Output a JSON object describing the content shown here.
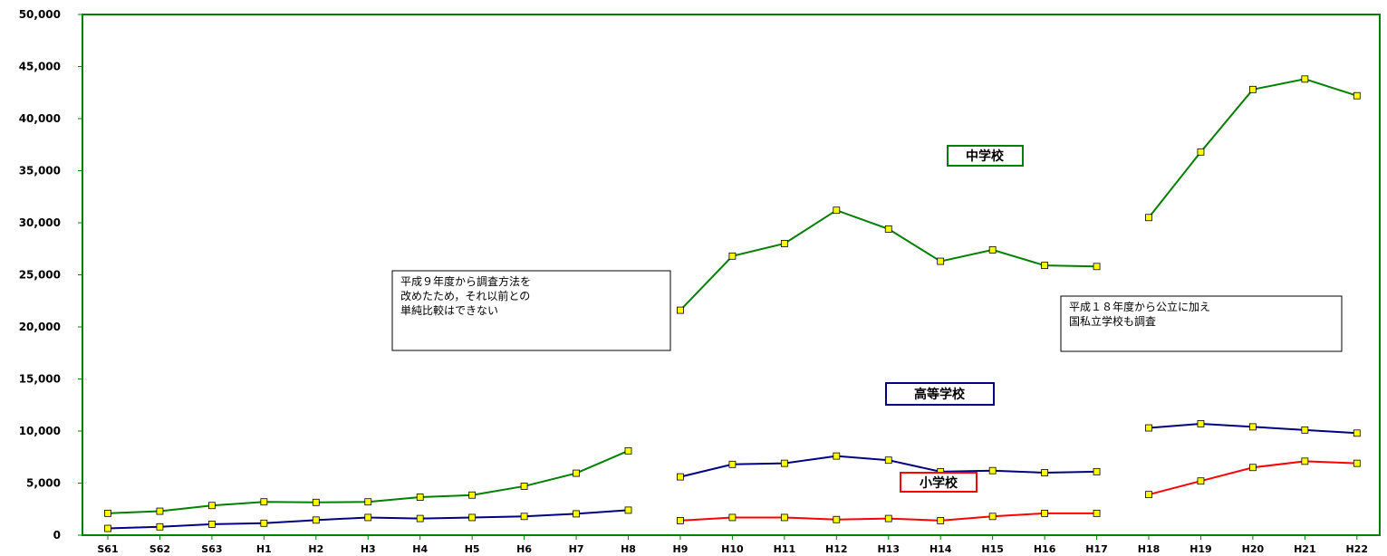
{
  "chart_data": {
    "type": "line",
    "categories": [
      "S61",
      "S62",
      "S63",
      "H1",
      "H2",
      "H3",
      "H4",
      "H5",
      "H6",
      "H7",
      "H8",
      "H9",
      "H10",
      "H11",
      "H12",
      "H13",
      "H14",
      "H15",
      "H16",
      "H17",
      "H18",
      "H19",
      "H20",
      "H21",
      "H22"
    ],
    "ylim": [
      0,
      50000
    ],
    "yticks": [
      0,
      5000,
      10000,
      15000,
      20000,
      25000,
      30000,
      35000,
      40000,
      45000,
      50000
    ],
    "ytick_labels": [
      "0",
      "5,000",
      "10,000",
      "15,000",
      "20,000",
      "25,000",
      "30,000",
      "35,000",
      "40,000",
      "45,000",
      "50,000"
    ],
    "grid": false,
    "series": [
      {
        "name": "中学校",
        "color": "#008000",
        "values": [
          2100,
          2300,
          2850,
          3200,
          3150,
          3200,
          3650,
          3850,
          4700,
          5950,
          8100,
          21600,
          26800,
          28000,
          31200,
          29400,
          26300,
          27400,
          25900,
          25800,
          30500,
          36800,
          42800,
          43800,
          42200
        ]
      },
      {
        "name": "高等学校",
        "color": "#000080",
        "values": [
          650,
          800,
          1050,
          1150,
          1450,
          1700,
          1600,
          1700,
          1800,
          2050,
          2400,
          5600,
          6800,
          6900,
          7600,
          7200,
          6100,
          6200,
          6000,
          6100,
          10300,
          10700,
          10400,
          10100,
          9800
        ]
      },
      {
        "name": "小学校",
        "color": "#ff0000",
        "values": [
          null,
          null,
          null,
          null,
          null,
          null,
          null,
          null,
          null,
          null,
          null,
          1400,
          1700,
          1700,
          1500,
          1600,
          1400,
          1800,
          2100,
          2100,
          3900,
          5200,
          6500,
          7100,
          6900
        ]
      }
    ],
    "segments": [
      [
        0,
        10
      ],
      [
        11,
        19
      ],
      [
        20,
        24
      ]
    ],
    "annotations": [
      [
        "平成９年度から調査方法を",
        "改めたため，それ以前との",
        "単純比較はできない"
      ],
      [
        "平成１８年度から公立に加え",
        "国私立学校も調査"
      ]
    ]
  }
}
